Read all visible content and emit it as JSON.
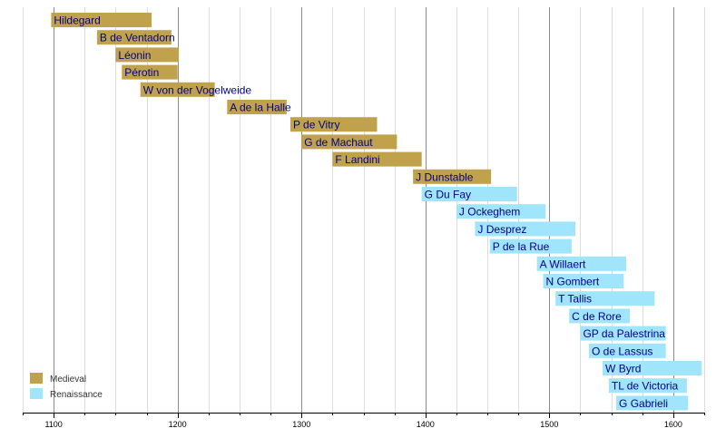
{
  "chart_data": {
    "type": "bar",
    "orientation": "horizontal-timeline",
    "xlim": [
      1075,
      1625
    ],
    "xticks": [
      1100,
      1200,
      1300,
      1400,
      1500,
      1600
    ],
    "minor_grid_step": 25,
    "grid": true,
    "legend_position": "bottom-left",
    "legend": [
      {
        "label": "Medieval",
        "color": "#bfa24b"
      },
      {
        "label": "Renaissance",
        "color": "#a1e5fd"
      }
    ],
    "series": [
      {
        "name": "Hildegard",
        "start": 1098,
        "end": 1179,
        "era": "Medieval"
      },
      {
        "name": "B de Ventadorn",
        "start": 1135,
        "end": 1195,
        "era": "Medieval"
      },
      {
        "name": "Léonin",
        "start": 1150,
        "end": 1201,
        "era": "Medieval"
      },
      {
        "name": "Pérotin",
        "start": 1155,
        "end": 1200,
        "era": "Medieval"
      },
      {
        "name": "W von der Vogelweide",
        "start": 1170,
        "end": 1230,
        "era": "Medieval"
      },
      {
        "name": "A de la Halle",
        "start": 1240,
        "end": 1288,
        "era": "Medieval"
      },
      {
        "name": "P de Vitry",
        "start": 1291,
        "end": 1361,
        "era": "Medieval"
      },
      {
        "name": "G de Machaut",
        "start": 1300,
        "end": 1377,
        "era": "Medieval"
      },
      {
        "name": "F Landini",
        "start": 1325,
        "end": 1397,
        "era": "Medieval"
      },
      {
        "name": "J Dunstable",
        "start": 1390,
        "end": 1453,
        "era": "Medieval"
      },
      {
        "name": "G Du Fay",
        "start": 1397,
        "end": 1474,
        "era": "Renaissance"
      },
      {
        "name": "J Ockeghem",
        "start": 1425,
        "end": 1497,
        "era": "Renaissance"
      },
      {
        "name": "J Desprez",
        "start": 1440,
        "end": 1521,
        "era": "Renaissance"
      },
      {
        "name": "P de la Rue",
        "start": 1452,
        "end": 1518,
        "era": "Renaissance"
      },
      {
        "name": "A Willaert",
        "start": 1490,
        "end": 1562,
        "era": "Renaissance"
      },
      {
        "name": "N Gombert",
        "start": 1495,
        "end": 1560,
        "era": "Renaissance"
      },
      {
        "name": "T Tallis",
        "start": 1505,
        "end": 1585,
        "era": "Renaissance"
      },
      {
        "name": "C de Rore",
        "start": 1516,
        "end": 1565,
        "era": "Renaissance"
      },
      {
        "name": "GP da Palestrina",
        "start": 1525,
        "end": 1594,
        "era": "Renaissance"
      },
      {
        "name": "O de Lassus",
        "start": 1532,
        "end": 1594,
        "era": "Renaissance"
      },
      {
        "name": "W Byrd",
        "start": 1543,
        "end": 1623,
        "era": "Renaissance"
      },
      {
        "name": "TL de Victoria",
        "start": 1548,
        "end": 1611,
        "era": "Renaissance"
      },
      {
        "name": "G Gabrieli",
        "start": 1554,
        "end": 1612,
        "era": "Renaissance"
      }
    ]
  }
}
